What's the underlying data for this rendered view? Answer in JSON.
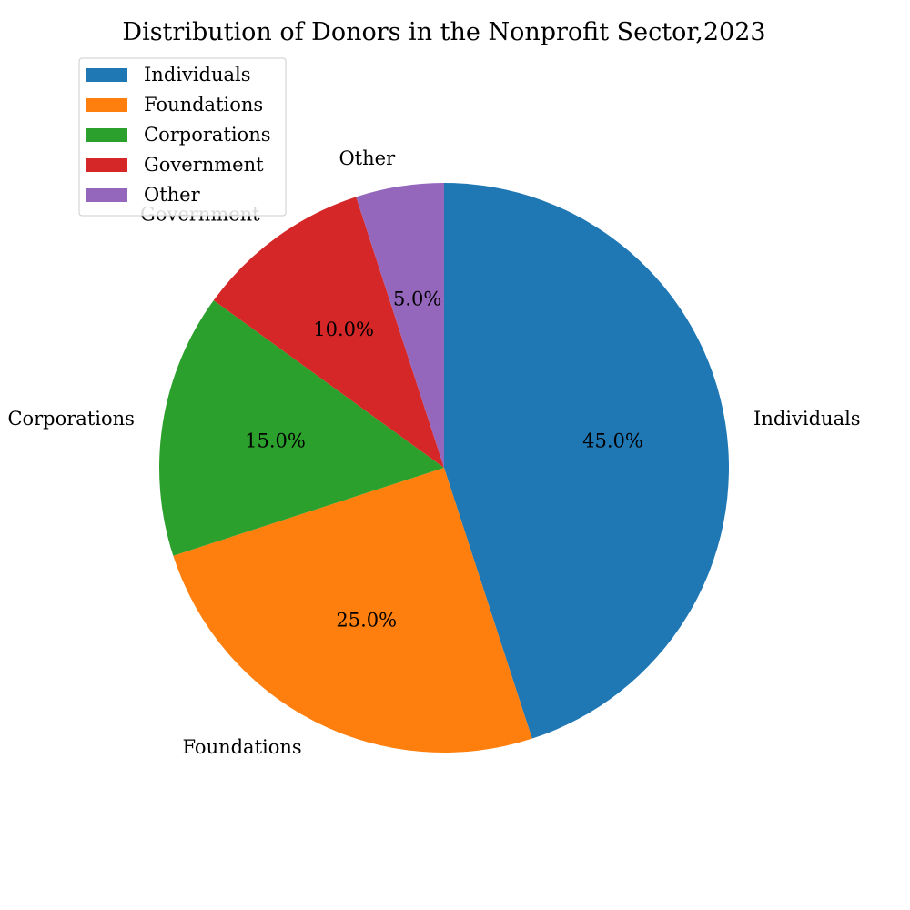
{
  "chart_data": {
    "type": "pie",
    "title": "Distribution of Donors in the Nonprofit Sector,2023",
    "categories": [
      "Individuals",
      "Foundations",
      "Corporations",
      "Government",
      "Other"
    ],
    "values": [
      45.0,
      25.0,
      15.0,
      10.0,
      5.0
    ],
    "value_labels": [
      "45.0%",
      "25.0%",
      "15.0%",
      "10.0%",
      "5.0%"
    ],
    "colors": [
      "#1f77b4",
      "#ff7f0e",
      "#2ca02c",
      "#d62728",
      "#9467bd"
    ],
    "start_angle_deg": 90,
    "direction": "clockwise",
    "legend": {
      "placement": "top-left",
      "entries": [
        "Individuals",
        "Foundations",
        "Corporations",
        "Government",
        "Other"
      ]
    }
  }
}
